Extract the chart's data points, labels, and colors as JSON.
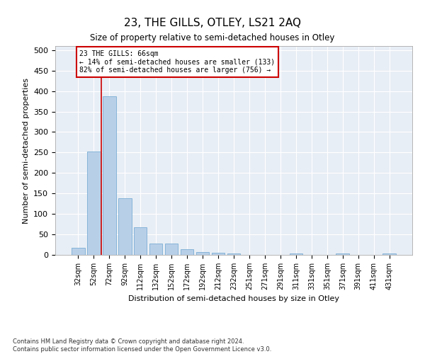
{
  "title": "23, THE GILLS, OTLEY, LS21 2AQ",
  "subtitle": "Size of property relative to semi-detached houses in Otley",
  "xlabel": "Distribution of semi-detached houses by size in Otley",
  "ylabel": "Number of semi-detached properties",
  "bar_color": "#b8cfe8",
  "bar_edge_color": "#7aadd4",
  "marker_line_color": "#cc0000",
  "annotation_text": "23 THE GILLS: 66sqm\n← 14% of semi-detached houses are smaller (133)\n82% of semi-detached houses are larger (756) →",
  "categories": [
    "32sqm",
    "52sqm",
    "72sqm",
    "92sqm",
    "112sqm",
    "132sqm",
    "152sqm",
    "172sqm",
    "192sqm",
    "212sqm",
    "232sqm",
    "251sqm",
    "271sqm",
    "291sqm",
    "311sqm",
    "331sqm",
    "351sqm",
    "371sqm",
    "391sqm",
    "411sqm",
    "431sqm"
  ],
  "values": [
    18,
    252,
    388,
    138,
    68,
    27,
    27,
    14,
    7,
    5,
    3,
    0,
    0,
    0,
    3,
    0,
    0,
    3,
    0,
    0,
    3
  ],
  "ylim": [
    0,
    510
  ],
  "yticks": [
    0,
    50,
    100,
    150,
    200,
    250,
    300,
    350,
    400,
    450,
    500
  ],
  "bg_color": "#e8eef5",
  "footnote": "Contains HM Land Registry data © Crown copyright and database right 2024.\nContains public sector information licensed under the Open Government Licence v3.0.",
  "bar_width": 0.85,
  "fig_width": 6.0,
  "fig_height": 5.0,
  "dpi": 100
}
